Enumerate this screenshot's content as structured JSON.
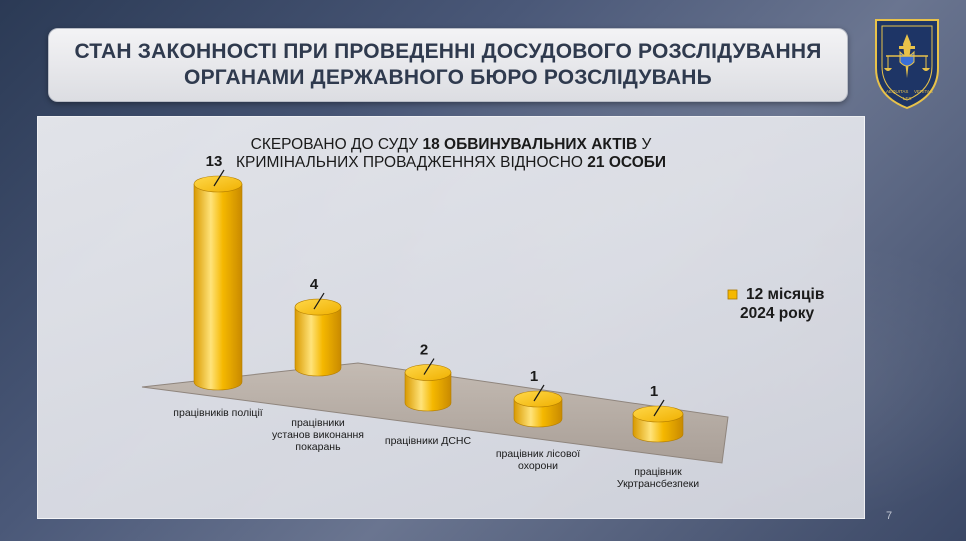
{
  "slide": {
    "title_line1": "СТАН ЗАКОННОСТІ ПРИ ПРОВЕДЕННІ ДОСУДОВОГО РОЗСЛІДУВАННЯ",
    "title_line2": "ОРГАНАМИ ДЕРЖАВНОГО БЮРО РОЗСЛІДУВАНЬ",
    "page_number": "7"
  },
  "emblem": {
    "icon": "dbr-emblem-icon",
    "motto_left": "AEQUITAS",
    "motto_center": "LEX",
    "motto_right": "VERITAS"
  },
  "colors": {
    "accent": "#f5b800",
    "bar_light": "#ffe37a",
    "bar_dark": "#d99a00",
    "floor": "#b9b0a8",
    "title_text": "#2f3a4e"
  },
  "chart_data": {
    "type": "bar",
    "style": "3d-cylinder",
    "title": {
      "line1_pre": "СКЕРОВАНО ДО СУДУ ",
      "line1_bold": "18 ОБВИНУВАЛЬНИХ АКТІВ",
      "line1_post": " У",
      "line2_pre": "КРИМІНАЛЬНИХ ПРОВАДЖЕННЯХ ВІДНОСНО ",
      "line2_bold": "21 ОСОБИ"
    },
    "categories": [
      [
        "працівників поліції"
      ],
      [
        "працівники",
        "установ виконання",
        "покарань"
      ],
      [
        "працівники ДСНС"
      ],
      [
        "працівник лісової",
        "охорони"
      ],
      [
        "працівник",
        "Укртрансбезпеки"
      ]
    ],
    "series": [
      {
        "name": "12 місяців 2024 року",
        "values": [
          13,
          4,
          2,
          1,
          1
        ]
      }
    ],
    "legend": {
      "line1": "12 місяців",
      "line2": "2024 року",
      "position": "right"
    },
    "ylim": [
      0,
      13
    ],
    "grid": false
  }
}
